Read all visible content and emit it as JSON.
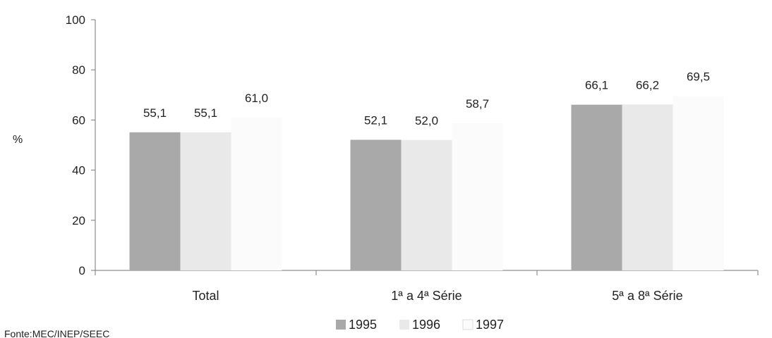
{
  "chart_data": {
    "type": "bar",
    "title": "",
    "xlabel": "",
    "ylabel": "%",
    "ylim": [
      0,
      100
    ],
    "yticks": [
      "0",
      "20",
      "40",
      "60",
      "80",
      "100"
    ],
    "categories": [
      "Total",
      "1ª a 4ª Série",
      "5ª a 8ª Série"
    ],
    "series": [
      {
        "name": "1995",
        "values": [
          55.1,
          52.1,
          66.1
        ],
        "labels": [
          "55,1",
          "52,1",
          "66,1"
        ],
        "color": "#a9a9a9"
      },
      {
        "name": "1996",
        "values": [
          55.1,
          52.0,
          66.2
        ],
        "labels": [
          "55,1",
          "52,0",
          "66,2"
        ],
        "color": "#e9e9e9"
      },
      {
        "name": "1997",
        "values": [
          61.0,
          58.7,
          69.5
        ],
        "labels": [
          "61,0",
          "58,7",
          "69,5"
        ],
        "color": "#fbfbfb"
      }
    ],
    "grid": false,
    "legend_position": "bottom"
  },
  "source": "Fonte:MEC/INEP/SEEC"
}
